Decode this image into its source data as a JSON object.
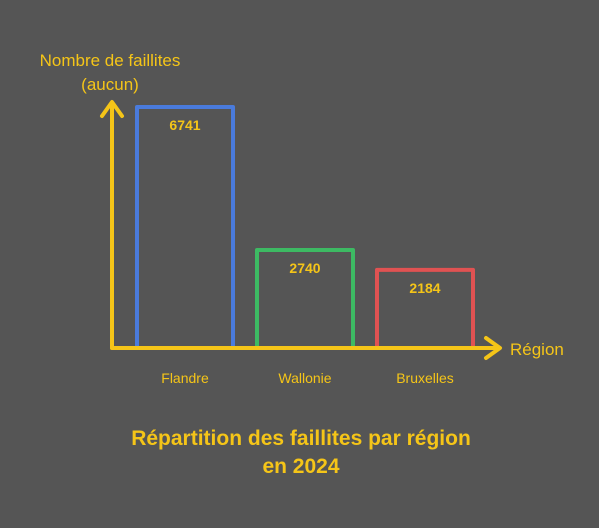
{
  "chart_data": {
    "type": "bar",
    "title_lines": [
      "Répartition des faillites par région",
      "en 2024"
    ],
    "ylabel_lines": [
      "Nombre de faillites",
      "(aucun)"
    ],
    "xlabel": "Région",
    "categories": [
      "Flandre",
      "Wallonie",
      "Bruxelles"
    ],
    "values": [
      6741,
      2740,
      2184
    ],
    "value_labels": [
      "6741",
      "2740",
      "2184"
    ],
    "ylim": [
      0,
      6741
    ],
    "grid": false,
    "bar_colors": [
      "#4a7bdc",
      "#3dba63",
      "#e05252"
    ],
    "axis_color": "#f5c518",
    "text_color": "#f5c518",
    "value_label_color": "#f5c518",
    "background": "#555555"
  }
}
